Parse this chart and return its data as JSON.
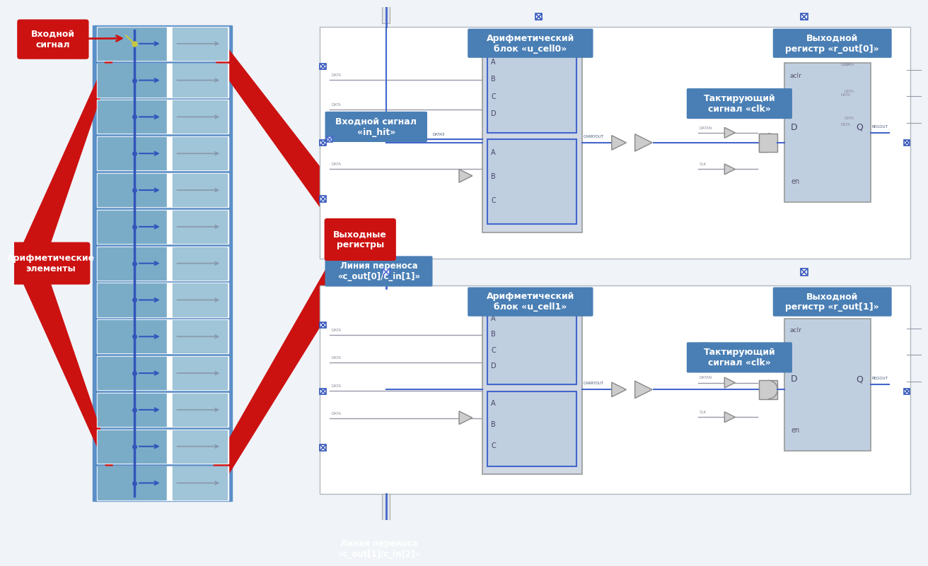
{
  "bg_color": "#f0f4f8",
  "labels": {
    "input_signal": "Входной\nсигнал",
    "arith_elements": "Арифметические\nэлементы",
    "output_regs": "Выходные\nрегистры",
    "arith_block0": "Арифметический\nблок «u_cell0»",
    "arith_block1": "Арифметический\nблок «u_cell1»",
    "out_reg0": "Выходной\nрегистр «r_out[0]»",
    "out_reg1": "Выходной\nрегистр «r_out[1]»",
    "in_signal_hit": "Входной сигнал\n«in_hit»",
    "carry_line_01": "Линия переноса\n«c_out[0]/c_in[1]»",
    "carry_line_12": "Линия переноса\n«c_out[1]/c_in[2]»",
    "clk_signal0": "Тактирующий\nсигнал «clk»",
    "clk_signal1": "Тактирующий\nсигнал «clk»"
  },
  "colors": {
    "red_label": "#cc1111",
    "blue_label": "#4a7fb5",
    "blue_label2": "#5a8fc5",
    "arrow_blue": "#3355bb",
    "panel_blue": "#5b8fc8",
    "cell_left": "#7aacc8",
    "cell_right": "#a0c4d8",
    "carry_blue": "#4466cc",
    "wire_gray": "#999999",
    "block_bg": "#d4dde8",
    "reg_bg": "#c0cfe0",
    "white": "#ffffff",
    "gray_edge": "#888888",
    "light_gray": "#cccccc",
    "yellow_green": "#c8c840"
  }
}
